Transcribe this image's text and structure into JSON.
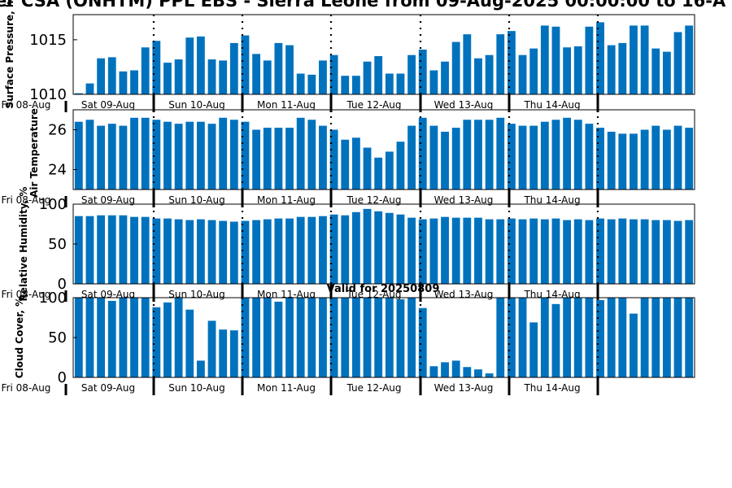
{
  "title": "er CSA (ONHTM) PPL EBS - Sierra Leone from 09-Aug-2025 00:00:00 to 16-A",
  "valid_text": "Valid for 20250809",
  "bar_color": "#0072bd",
  "day_labels": [
    "Fri 08-Aug",
    "Sat 09-Aug",
    "Sun 10-Aug",
    "Mon 11-Aug",
    "Tue 12-Aug",
    "Wed 13-Aug",
    "Thu 14-Aug"
  ],
  "chart_data": [
    {
      "type": "bar",
      "ylabel": "Surface Pressure, hPa",
      "ylabel_shown": "Surface Pressure, h",
      "ylim": [
        1010,
        1017.3
      ],
      "yticks": [
        1010,
        1015
      ],
      "values": [
        1010.1,
        1011.0,
        1013.3,
        1013.4,
        1012.1,
        1012.2,
        1014.3,
        1014.9,
        1012.9,
        1013.2,
        1015.2,
        1015.3,
        1013.2,
        1013.1,
        1014.7,
        1015.4,
        1013.7,
        1013.1,
        1014.7,
        1014.5,
        1011.9,
        1011.8,
        1013.1,
        1013.6,
        1011.7,
        1011.7,
        1013.0,
        1013.5,
        1011.9,
        1011.9,
        1013.6,
        1014.1,
        1012.2,
        1013.0,
        1014.8,
        1015.5,
        1013.3,
        1013.6,
        1015.5,
        1015.8,
        1013.6,
        1014.2,
        1016.3,
        1016.2,
        1014.3,
        1014.4,
        1016.2,
        1016.6,
        1014.5,
        1014.7,
        1016.3,
        1016.3,
        1014.2,
        1013.9,
        1015.7,
        1016.3
      ]
    },
    {
      "type": "bar",
      "ylabel": "Air Temperature",
      "ylim": [
        23,
        27.0
      ],
      "yticks": [
        24,
        26
      ],
      "values": [
        26.4,
        26.5,
        26.2,
        26.3,
        26.2,
        26.6,
        26.6,
        26.5,
        26.4,
        26.3,
        26.4,
        26.4,
        26.3,
        26.6,
        26.5,
        26.4,
        26.0,
        26.1,
        26.1,
        26.1,
        26.6,
        26.5,
        26.2,
        26.0,
        25.5,
        25.6,
        25.1,
        24.6,
        24.9,
        25.4,
        26.2,
        26.6,
        26.2,
        25.9,
        26.1,
        26.5,
        26.5,
        26.5,
        26.6,
        26.3,
        26.2,
        26.2,
        26.4,
        26.5,
        26.6,
        26.5,
        26.3,
        26.1,
        25.9,
        25.8,
        25.8,
        26.0,
        26.2,
        26.0,
        26.2,
        26.1
      ]
    },
    {
      "type": "bar",
      "ylabel": "Relative Humidity, %",
      "ylim": [
        0,
        100
      ],
      "yticks": [
        0,
        50,
        100
      ],
      "values": [
        85,
        85,
        86,
        86,
        86,
        84,
        84,
        82,
        82,
        81,
        80,
        81,
        80,
        79,
        78,
        79,
        80,
        81,
        82,
        82,
        84,
        84,
        85,
        87,
        86,
        90,
        94,
        91,
        89,
        87,
        83,
        81,
        82,
        84,
        83,
        83,
        83,
        81,
        81,
        82,
        81,
        82,
        81,
        82,
        80,
        81,
        80,
        82,
        81,
        82,
        81,
        81,
        80,
        80,
        79,
        80
      ]
    },
    {
      "type": "bar",
      "ylabel": "Cloud Cover, %",
      "ylim": [
        0,
        100
      ],
      "yticks": [
        0,
        50,
        100
      ],
      "values": [
        100,
        100,
        100,
        96,
        100,
        100,
        100,
        88,
        94,
        100,
        85,
        21,
        71,
        60,
        59,
        100,
        100,
        100,
        95,
        100,
        100,
        100,
        100,
        100,
        100,
        100,
        100,
        100,
        100,
        98,
        100,
        87,
        14,
        19,
        21,
        13,
        10,
        5,
        100,
        100,
        100,
        69,
        100,
        92,
        100,
        100,
        100,
        97,
        100,
        100,
        80,
        100,
        100,
        100,
        100,
        100
      ]
    }
  ]
}
